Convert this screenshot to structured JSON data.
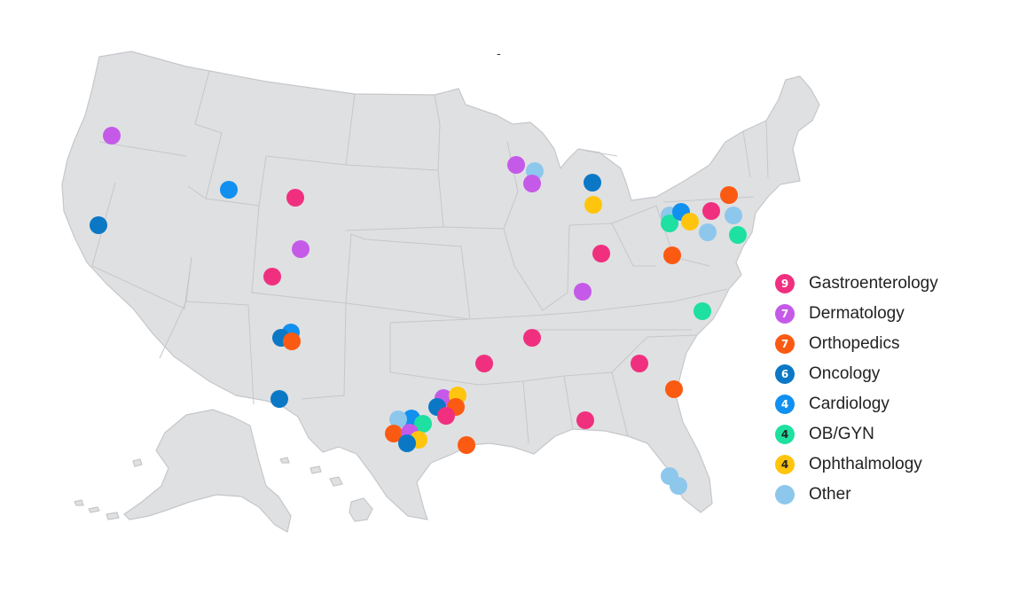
{
  "title": "-",
  "categories": [
    {
      "key": "gastro",
      "label": "Gastroenterology",
      "count": "9",
      "color": "#f0307f"
    },
    {
      "key": "derm",
      "label": "Dermatology",
      "count": "7",
      "color": "#c55ae8"
    },
    {
      "key": "ortho",
      "label": "Orthopedics",
      "count": "7",
      "color": "#fb5a12"
    },
    {
      "key": "onco",
      "label": "Oncology",
      "count": "6",
      "color": "#0b78c5"
    },
    {
      "key": "cardio",
      "label": "Cardiology",
      "count": "4",
      "color": "#1190f0"
    },
    {
      "key": "obgyn",
      "label": "OB/GYN",
      "count": "4",
      "color": "#1ee0a0"
    },
    {
      "key": "ophth",
      "label": "Ophthalmology",
      "count": "4",
      "color": "#ffc50e"
    },
    {
      "key": "other",
      "label": "Other",
      "count": "",
      "color": "#8dc7ec"
    }
  ],
  "locations": [
    {
      "state": "OR",
      "category": "derm"
    },
    {
      "state": "ID",
      "category": "cardio"
    },
    {
      "state": "CA",
      "category": "onco"
    },
    {
      "state": "WY",
      "category": "gastro"
    },
    {
      "state": "CO",
      "category": "derm"
    },
    {
      "state": "UT",
      "category": "gastro"
    },
    {
      "state": "NM",
      "category": "cardio"
    },
    {
      "state": "NM",
      "category": "onco"
    },
    {
      "state": "NM",
      "category": "ortho"
    },
    {
      "state": "TX",
      "category": "onco"
    },
    {
      "state": "WI",
      "category": "derm"
    },
    {
      "state": "WI",
      "category": "other"
    },
    {
      "state": "WI",
      "category": "derm"
    },
    {
      "state": "MI",
      "category": "onco"
    },
    {
      "state": "MI",
      "category": "ophth"
    },
    {
      "state": "IN",
      "category": "gastro"
    },
    {
      "state": "KY",
      "category": "derm"
    },
    {
      "state": "AR",
      "category": "gastro"
    },
    {
      "state": "OK",
      "category": "gastro"
    },
    {
      "state": "TX",
      "category": "derm"
    },
    {
      "state": "TX",
      "category": "ophth"
    },
    {
      "state": "TX",
      "category": "ortho"
    },
    {
      "state": "TX",
      "category": "onco"
    },
    {
      "state": "TX",
      "category": "gastro"
    },
    {
      "state": "TX",
      "category": "cardio"
    },
    {
      "state": "TX",
      "category": "other"
    },
    {
      "state": "TX",
      "category": "obgyn"
    },
    {
      "state": "TX",
      "category": "ortho"
    },
    {
      "state": "TX",
      "category": "derm"
    },
    {
      "state": "TX",
      "category": "ophth"
    },
    {
      "state": "TX",
      "category": "onco"
    },
    {
      "state": "TX",
      "category": "ortho"
    },
    {
      "state": "MS",
      "category": "gastro"
    },
    {
      "state": "GA",
      "category": "gastro"
    },
    {
      "state": "SC",
      "category": "ortho"
    },
    {
      "state": "FL",
      "category": "other"
    },
    {
      "state": "FL",
      "category": "other"
    },
    {
      "state": "NC",
      "category": "obgyn"
    },
    {
      "state": "WV",
      "category": "ortho"
    },
    {
      "state": "OH",
      "category": "other"
    },
    {
      "state": "OH",
      "category": "obgyn"
    },
    {
      "state": "PA",
      "category": "cardio"
    },
    {
      "state": "PA",
      "category": "ophth"
    },
    {
      "state": "PA",
      "category": "gastro"
    },
    {
      "state": "NY",
      "category": "ortho"
    },
    {
      "state": "NJ",
      "category": "other"
    },
    {
      "state": "NJ",
      "category": "obgyn"
    },
    {
      "state": "MD",
      "category": "other"
    }
  ]
}
